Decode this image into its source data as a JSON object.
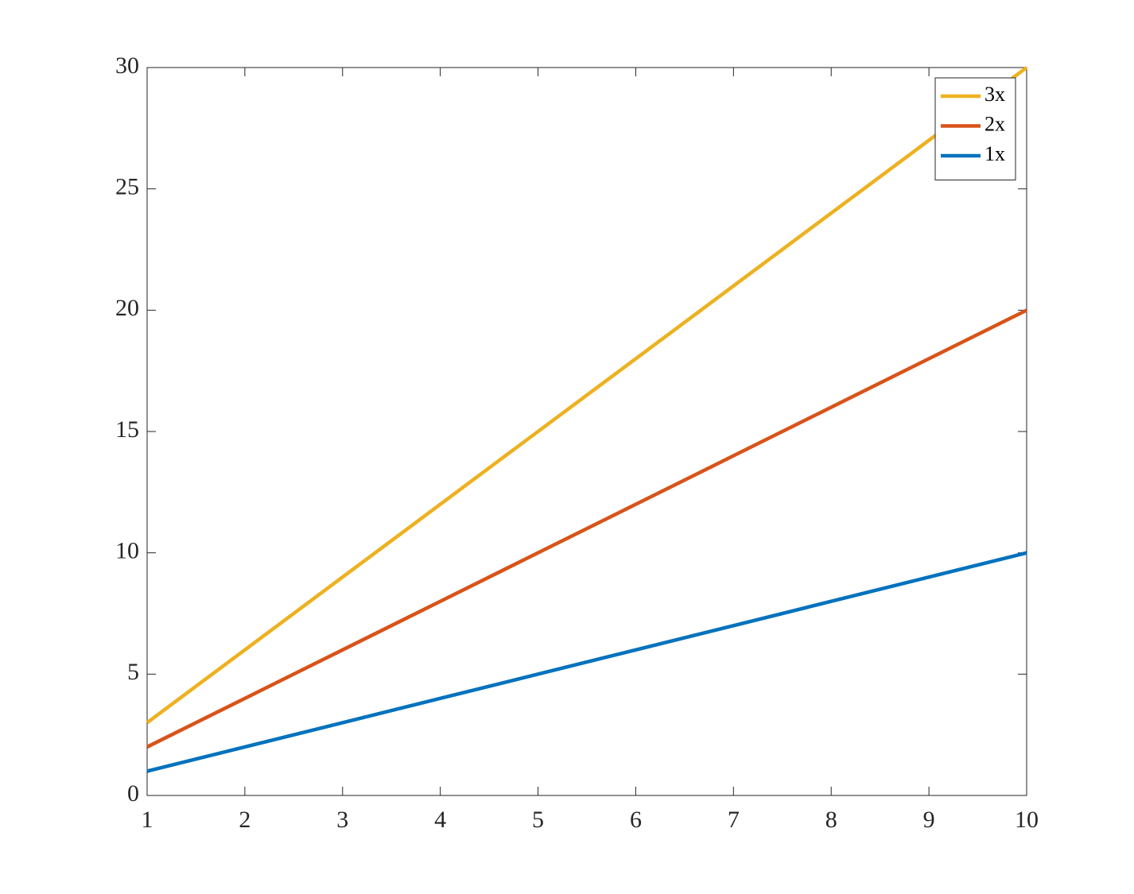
{
  "chart_data": {
    "type": "line",
    "x": [
      1,
      2,
      3,
      4,
      5,
      6,
      7,
      8,
      9,
      10
    ],
    "series": [
      {
        "name": "3x",
        "color": "#EDB120",
        "values": [
          3,
          6,
          9,
          12,
          15,
          18,
          21,
          24,
          27,
          30
        ]
      },
      {
        "name": "2x",
        "color": "#D95319",
        "values": [
          2,
          4,
          6,
          8,
          10,
          12,
          14,
          16,
          18,
          20
        ]
      },
      {
        "name": "1x",
        "color": "#0072BD",
        "values": [
          1,
          2,
          3,
          4,
          5,
          6,
          7,
          8,
          9,
          10
        ]
      }
    ],
    "xlim": [
      1,
      10
    ],
    "xticks": [
      1,
      2,
      3,
      4,
      5,
      6,
      7,
      8,
      9,
      10
    ],
    "ylim": [
      0,
      30
    ],
    "yticks": [
      0,
      5,
      10,
      15,
      20,
      25,
      30
    ],
    "grid": false,
    "legend": "northeast"
  }
}
